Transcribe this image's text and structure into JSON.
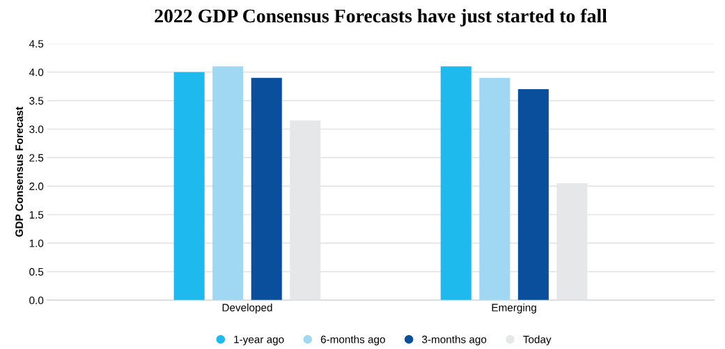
{
  "chart_data": {
    "type": "bar",
    "title": "2022 GDP Consensus Forecasts have just started to fall",
    "ylabel": "GDP Consensus Forecast",
    "categories": [
      "Developed",
      "Emerging"
    ],
    "series": [
      {
        "name": "1-year ago",
        "color": "#1fbaed",
        "values": [
          4.0,
          4.1
        ]
      },
      {
        "name": "6-months ago",
        "color": "#a0d8f3",
        "values": [
          4.1,
          3.9
        ]
      },
      {
        "name": "3-months ago",
        "color": "#0a4f9b",
        "values": [
          3.9,
          3.7
        ]
      },
      {
        "name": "Today",
        "color": "#e6e7e8",
        "values": [
          3.15,
          2.05
        ]
      }
    ],
    "ylim": [
      0,
      4.5
    ],
    "yticks": [
      {
        "value": 0,
        "label": "0.0"
      },
      {
        "value": 0.5,
        "label": "0.5"
      },
      {
        "value": 1,
        "label": "1.0"
      },
      {
        "value": 1.5,
        "label": "1.5"
      },
      {
        "value": 2,
        "label": "2.0"
      },
      {
        "value": 2.5,
        "label": "2.5"
      },
      {
        "value": 3,
        "label": "3.0"
      },
      {
        "value": 3.5,
        "label": "3.5"
      },
      {
        "value": 4,
        "label": "4.0"
      },
      {
        "value": 4.5,
        "label": "4.5"
      }
    ],
    "grid": "y",
    "legend": "bottom"
  }
}
